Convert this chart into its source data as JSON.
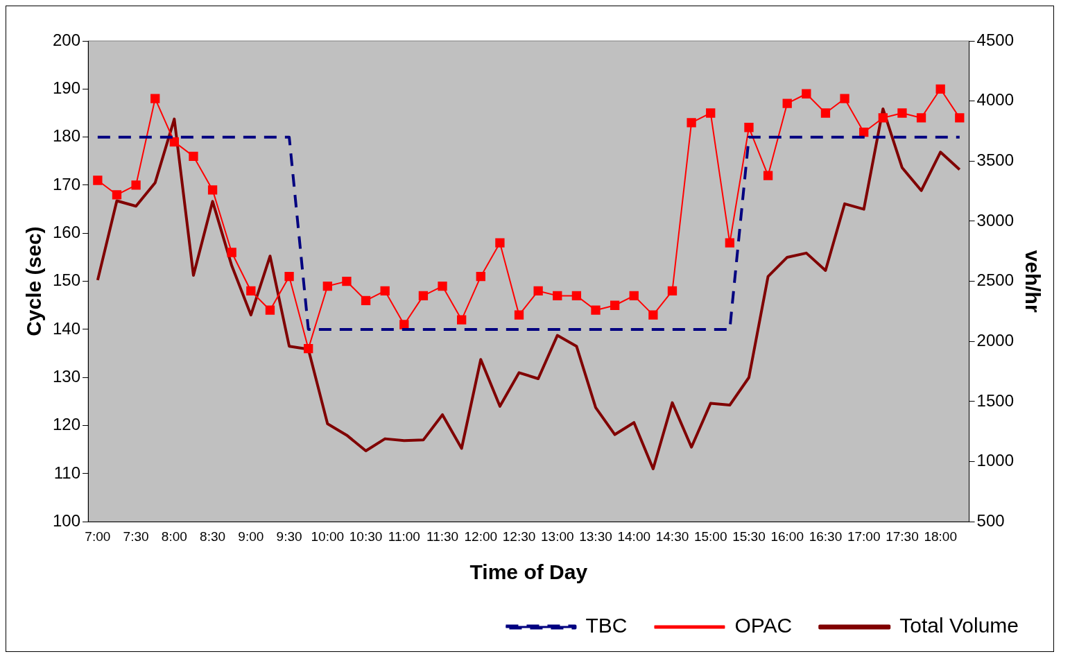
{
  "chart_data": {
    "type": "line",
    "xlabel": "Time of Day",
    "ylabel": "Cycle (sec)",
    "y2label": "veh/hr",
    "categories": [
      "7:00",
      null,
      "7:30",
      null,
      "8:00",
      null,
      "8:30",
      null,
      "9:00",
      null,
      "9:30",
      null,
      "10:00",
      null,
      "10:30",
      null,
      "11:00",
      null,
      "11:30",
      null,
      "12:00",
      null,
      "12:30",
      null,
      "13:00",
      null,
      "13:30",
      null,
      "14:00",
      null,
      "14:30",
      null,
      "15:00",
      null,
      "15:30",
      null,
      "16:00",
      null,
      "16:30",
      null,
      "17:00",
      null,
      "17:30",
      null,
      "18:00",
      null
    ],
    "ylim": [
      100,
      200
    ],
    "yticks": [
      100,
      110,
      120,
      130,
      140,
      150,
      160,
      170,
      180,
      190,
      200
    ],
    "y2lim": [
      500,
      4500
    ],
    "y2ticks": [
      500,
      1000,
      1500,
      2000,
      2500,
      3000,
      3500,
      4000,
      4500
    ],
    "legend": "bottom right",
    "series": [
      {
        "name": "TBC",
        "color": "#000080",
        "line_style": "dashed",
        "marker": "none",
        "values": [
          180,
          180,
          180,
          180,
          180,
          180,
          180,
          180,
          180,
          180,
          180,
          140,
          140,
          140,
          140,
          140,
          140,
          140,
          140,
          140,
          140,
          140,
          140,
          140,
          140,
          140,
          140,
          140,
          140,
          140,
          140,
          140,
          140,
          140,
          180,
          180,
          180,
          180,
          180,
          180,
          180,
          180,
          180,
          180,
          180,
          180
        ]
      },
      {
        "name": "OPAC",
        "color": "#ff0000",
        "line_style": "solid",
        "marker": "square",
        "values": [
          171,
          168,
          170,
          188,
          179,
          176,
          169,
          156,
          148,
          144,
          151,
          136,
          149,
          150,
          146,
          148,
          141,
          147,
          149,
          142,
          151,
          158,
          143,
          148,
          147,
          147,
          144,
          145,
          147,
          143,
          148,
          183,
          185,
          158,
          182,
          172,
          187,
          189,
          185,
          188,
          181,
          184,
          185,
          184,
          190,
          184
        ]
      },
      {
        "name": "Total Volume",
        "color": "#800000",
        "line_style": "solid",
        "marker": "none",
        "axis": "y2",
        "values": [
          2510,
          3170,
          3125,
          3320,
          3850,
          2550,
          3165,
          2630,
          2220,
          2710,
          1960,
          1935,
          1315,
          1220,
          1090,
          1190,
          1175,
          1180,
          1390,
          1110,
          1850,
          1460,
          1740,
          1690,
          2050,
          1960,
          1450,
          1225,
          1325,
          940,
          1490,
          1120,
          1485,
          1470,
          1700,
          2540,
          2700,
          2735,
          2590,
          3145,
          3100,
          3935,
          3445,
          3255,
          3575,
          3430
        ]
      }
    ]
  }
}
